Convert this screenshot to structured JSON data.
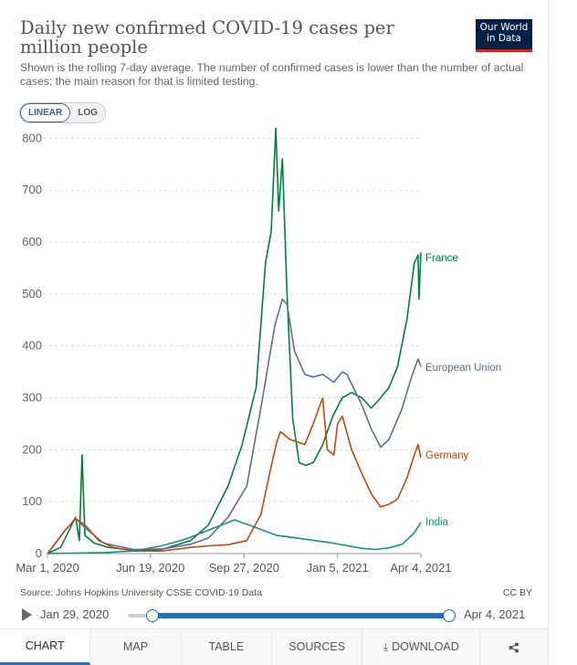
{
  "header": {
    "title": "Daily new confirmed COVID-19 cases per million people",
    "subtitle": "Shown is the rolling 7-day average. The number of confirmed cases is lower than the number of actual cases; the main reason for that is limited testing.",
    "logo_line1": "Our World",
    "logo_line2": "in Data"
  },
  "scale_toggle": {
    "linear": "LINEAR",
    "log": "LOG",
    "active": "LINEAR"
  },
  "footer": {
    "source": "Source: Johns Hopkins University CSSE COVID-19 Data",
    "license": "CC BY"
  },
  "timeline": {
    "start": "Jan 29, 2020",
    "end": "Apr 4, 2021"
  },
  "tabs": {
    "chart": "CHART",
    "map": "MAP",
    "table": "TABLE",
    "sources": "SOURCES",
    "download": "DOWNLOAD"
  },
  "icons": {
    "play": "play-icon",
    "download": "download-icon",
    "share": "share-icon"
  },
  "colors": {
    "france": "#00813a",
    "eu": "#5d6f98",
    "germany": "#c04a10",
    "india": "#18908a",
    "accent": "#1d71bf"
  },
  "chart_data": {
    "type": "line",
    "title": "Daily new confirmed COVID-19 cases per million people",
    "xlabel": "",
    "ylabel": "",
    "x_ticks": [
      "Mar 1, 2020",
      "Jun 19, 2020",
      "Sep 27, 2020",
      "Jan 5, 2021",
      "Apr 4, 2021"
    ],
    "y_ticks": [
      0,
      100,
      200,
      300,
      400,
      500,
      600,
      700,
      800
    ],
    "ylim": [
      0,
      820
    ],
    "xlim": [
      "2020-03-01",
      "2021-04-04"
    ],
    "grid": "horizontal dashed",
    "legend": "inline labels at line ends",
    "series": [
      {
        "name": "France",
        "color": "#00813a",
        "points": [
          [
            "2020-03-01",
            0
          ],
          [
            "2020-03-15",
            12
          ],
          [
            "2020-03-25",
            48
          ],
          [
            "2020-03-31",
            70
          ],
          [
            "2020-04-04",
            25
          ],
          [
            "2020-04-07",
            190
          ],
          [
            "2020-04-10",
            35
          ],
          [
            "2020-04-20",
            20
          ],
          [
            "2020-05-05",
            12
          ],
          [
            "2020-06-01",
            6
          ],
          [
            "2020-07-01",
            8
          ],
          [
            "2020-08-01",
            25
          ],
          [
            "2020-08-20",
            55
          ],
          [
            "2020-09-10",
            130
          ],
          [
            "2020-09-25",
            210
          ],
          [
            "2020-10-10",
            320
          ],
          [
            "2020-10-20",
            560
          ],
          [
            "2020-10-26",
            620
          ],
          [
            "2020-10-31",
            820
          ],
          [
            "2020-11-03",
            660
          ],
          [
            "2020-11-07",
            760
          ],
          [
            "2020-11-12",
            500
          ],
          [
            "2020-11-18",
            260
          ],
          [
            "2020-11-25",
            175
          ],
          [
            "2020-12-02",
            170
          ],
          [
            "2020-12-10",
            175
          ],
          [
            "2020-12-20",
            210
          ],
          [
            "2020-12-31",
            265
          ],
          [
            "2021-01-10",
            300
          ],
          [
            "2021-01-20",
            310
          ],
          [
            "2021-01-31",
            300
          ],
          [
            "2021-02-10",
            280
          ],
          [
            "2021-02-20",
            300
          ],
          [
            "2021-03-01",
            320
          ],
          [
            "2021-03-10",
            360
          ],
          [
            "2021-03-20",
            450
          ],
          [
            "2021-03-28",
            560
          ],
          [
            "2021-04-01",
            575
          ],
          [
            "2021-04-02",
            490
          ],
          [
            "2021-04-04",
            580
          ]
        ]
      },
      {
        "name": "European Union",
        "color": "#5d6f98",
        "points": [
          [
            "2020-03-01",
            0
          ],
          [
            "2020-03-20",
            45
          ],
          [
            "2020-03-31",
            68
          ],
          [
            "2020-04-10",
            50
          ],
          [
            "2020-04-30",
            20
          ],
          [
            "2020-06-01",
            8
          ],
          [
            "2020-07-01",
            9
          ],
          [
            "2020-08-01",
            18
          ],
          [
            "2020-08-20",
            30
          ],
          [
            "2020-09-10",
            70
          ],
          [
            "2020-09-30",
            130
          ],
          [
            "2020-10-15",
            280
          ],
          [
            "2020-10-30",
            440
          ],
          [
            "2020-11-07",
            490
          ],
          [
            "2020-11-12",
            480
          ],
          [
            "2020-11-20",
            390
          ],
          [
            "2020-12-01",
            345
          ],
          [
            "2020-12-10",
            340
          ],
          [
            "2020-12-20",
            345
          ],
          [
            "2021-01-01",
            330
          ],
          [
            "2021-01-10",
            350
          ],
          [
            "2021-01-15",
            345
          ],
          [
            "2021-01-30",
            290
          ],
          [
            "2021-02-10",
            240
          ],
          [
            "2021-02-20",
            205
          ],
          [
            "2021-03-01",
            220
          ],
          [
            "2021-03-15",
            280
          ],
          [
            "2021-03-25",
            340
          ],
          [
            "2021-04-01",
            375
          ],
          [
            "2021-04-04",
            360
          ]
        ]
      },
      {
        "name": "Germany",
        "color": "#c04a10",
        "points": [
          [
            "2020-03-01",
            0
          ],
          [
            "2020-03-20",
            45
          ],
          [
            "2020-03-31",
            67
          ],
          [
            "2020-04-10",
            55
          ],
          [
            "2020-04-25",
            25
          ],
          [
            "2020-05-10",
            12
          ],
          [
            "2020-06-01",
            5
          ],
          [
            "2020-07-01",
            5
          ],
          [
            "2020-08-01",
            12
          ],
          [
            "2020-08-20",
            15
          ],
          [
            "2020-09-10",
            17
          ],
          [
            "2020-09-30",
            25
          ],
          [
            "2020-10-15",
            75
          ],
          [
            "2020-10-25",
            160
          ],
          [
            "2020-11-01",
            215
          ],
          [
            "2020-11-05",
            235
          ],
          [
            "2020-11-15",
            220
          ],
          [
            "2020-12-01",
            210
          ],
          [
            "2020-12-10",
            250
          ],
          [
            "2020-12-20",
            300
          ],
          [
            "2020-12-25",
            200
          ],
          [
            "2021-01-01",
            190
          ],
          [
            "2021-01-05",
            250
          ],
          [
            "2021-01-10",
            265
          ],
          [
            "2021-01-20",
            200
          ],
          [
            "2021-02-01",
            150
          ],
          [
            "2021-02-10",
            115
          ],
          [
            "2021-02-20",
            90
          ],
          [
            "2021-03-01",
            95
          ],
          [
            "2021-03-10",
            105
          ],
          [
            "2021-03-20",
            145
          ],
          [
            "2021-03-28",
            190
          ],
          [
            "2021-04-01",
            210
          ],
          [
            "2021-04-04",
            185
          ]
        ]
      },
      {
        "name": "India",
        "color": "#18908a",
        "points": [
          [
            "2020-03-01",
            0
          ],
          [
            "2020-05-01",
            2
          ],
          [
            "2020-06-01",
            5
          ],
          [
            "2020-07-01",
            15
          ],
          [
            "2020-07-25",
            27
          ],
          [
            "2020-08-20",
            45
          ],
          [
            "2020-09-17",
            65
          ],
          [
            "2020-10-10",
            50
          ],
          [
            "2020-11-01",
            35
          ],
          [
            "2020-11-30",
            28
          ],
          [
            "2020-12-31",
            20
          ],
          [
            "2021-01-31",
            10
          ],
          [
            "2021-02-15",
            8
          ],
          [
            "2021-03-01",
            11
          ],
          [
            "2021-03-15",
            18
          ],
          [
            "2021-03-28",
            40
          ],
          [
            "2021-04-04",
            60
          ]
        ]
      }
    ]
  }
}
